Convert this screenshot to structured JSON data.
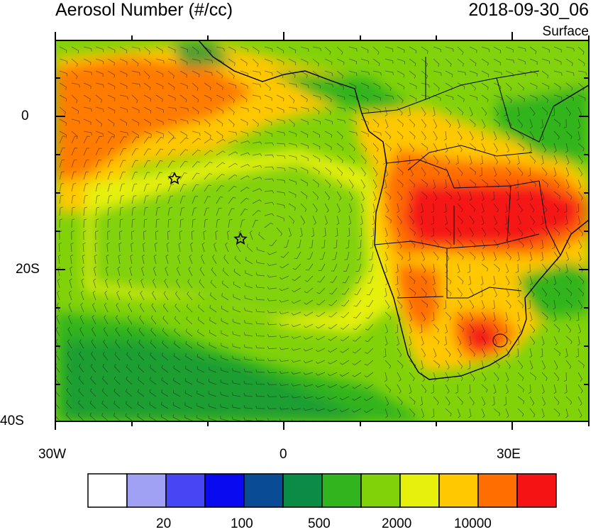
{
  "title": "Aerosol Number (#/cc)",
  "datetime": "2018-09-30_06",
  "level": "Surface",
  "axes": {
    "lat_labels": [
      "0",
      "20S",
      "40S"
    ],
    "lon_labels": [
      "30W",
      "0",
      "30E"
    ]
  },
  "colorbar": {
    "tick_labels": [
      "20",
      "100",
      "500",
      "2000",
      "10000"
    ],
    "colors": [
      "#ffffff",
      "#a0a0f5",
      "#4646f5",
      "#0a0af0",
      "#0a4b96",
      "#0a8c46",
      "#32b41e",
      "#82d20a",
      "#e6f00a",
      "#ffc800",
      "#ff6e00",
      "#f51414"
    ]
  },
  "markers": [
    {
      "name": "star-1",
      "lon": -14.5,
      "lat": -8
    },
    {
      "name": "star-2",
      "lon": -5.8,
      "lat": -16
    }
  ]
}
